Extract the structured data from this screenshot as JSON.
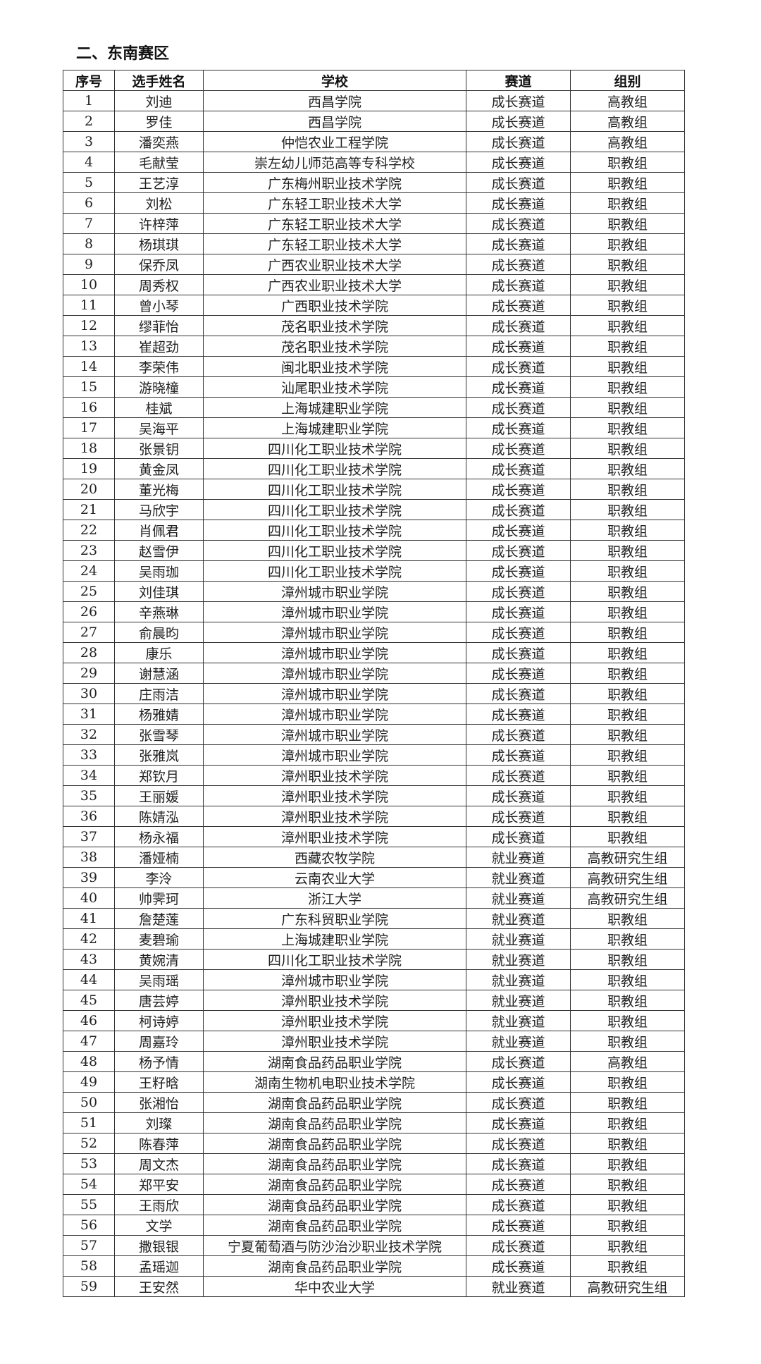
{
  "section_title": "二、东南赛区",
  "table": {
    "headers": [
      "序号",
      "选手姓名",
      "学校",
      "赛道",
      "组别"
    ],
    "rows": [
      [
        "1",
        "刘迪",
        "西昌学院",
        "成长赛道",
        "高教组"
      ],
      [
        "2",
        "罗佳",
        "西昌学院",
        "成长赛道",
        "高教组"
      ],
      [
        "3",
        "潘奕燕",
        "仲恺农业工程学院",
        "成长赛道",
        "高教组"
      ],
      [
        "4",
        "毛献莹",
        "崇左幼儿师范高等专科学校",
        "成长赛道",
        "职教组"
      ],
      [
        "5",
        "王艺淳",
        "广东梅州职业技术学院",
        "成长赛道",
        "职教组"
      ],
      [
        "6",
        "刘松",
        "广东轻工职业技术大学",
        "成长赛道",
        "职教组"
      ],
      [
        "7",
        "许梓萍",
        "广东轻工职业技术大学",
        "成长赛道",
        "职教组"
      ],
      [
        "8",
        "杨琪琪",
        "广东轻工职业技术大学",
        "成长赛道",
        "职教组"
      ],
      [
        "9",
        "保乔凤",
        "广西农业职业技术大学",
        "成长赛道",
        "职教组"
      ],
      [
        "10",
        "周秀权",
        "广西农业职业技术大学",
        "成长赛道",
        "职教组"
      ],
      [
        "11",
        "曾小琴",
        "广西职业技术学院",
        "成长赛道",
        "职教组"
      ],
      [
        "12",
        "缪菲怡",
        "茂名职业技术学院",
        "成长赛道",
        "职教组"
      ],
      [
        "13",
        "崔超劲",
        "茂名职业技术学院",
        "成长赛道",
        "职教组"
      ],
      [
        "14",
        "李荣伟",
        "闽北职业技术学院",
        "成长赛道",
        "职教组"
      ],
      [
        "15",
        "游晓橦",
        "汕尾职业技术学院",
        "成长赛道",
        "职教组"
      ],
      [
        "16",
        "桂斌",
        "上海城建职业学院",
        "成长赛道",
        "职教组"
      ],
      [
        "17",
        "吴海平",
        "上海城建职业学院",
        "成长赛道",
        "职教组"
      ],
      [
        "18",
        "张景钥",
        "四川化工职业技术学院",
        "成长赛道",
        "职教组"
      ],
      [
        "19",
        "黄金凤",
        "四川化工职业技术学院",
        "成长赛道",
        "职教组"
      ],
      [
        "20",
        "董光梅",
        "四川化工职业技术学院",
        "成长赛道",
        "职教组"
      ],
      [
        "21",
        "马欣宇",
        "四川化工职业技术学院",
        "成长赛道",
        "职教组"
      ],
      [
        "22",
        "肖佩君",
        "四川化工职业技术学院",
        "成长赛道",
        "职教组"
      ],
      [
        "23",
        "赵雪伊",
        "四川化工职业技术学院",
        "成长赛道",
        "职教组"
      ],
      [
        "24",
        "吴雨珈",
        "四川化工职业技术学院",
        "成长赛道",
        "职教组"
      ],
      [
        "25",
        "刘佳琪",
        "漳州城市职业学院",
        "成长赛道",
        "职教组"
      ],
      [
        "26",
        "辛燕琳",
        "漳州城市职业学院",
        "成长赛道",
        "职教组"
      ],
      [
        "27",
        "俞晨昀",
        "漳州城市职业学院",
        "成长赛道",
        "职教组"
      ],
      [
        "28",
        "康乐",
        "漳州城市职业学院",
        "成长赛道",
        "职教组"
      ],
      [
        "29",
        "谢慧涵",
        "漳州城市职业学院",
        "成长赛道",
        "职教组"
      ],
      [
        "30",
        "庄雨洁",
        "漳州城市职业学院",
        "成长赛道",
        "职教组"
      ],
      [
        "31",
        "杨雅婧",
        "漳州城市职业学院",
        "成长赛道",
        "职教组"
      ],
      [
        "32",
        "张雪琴",
        "漳州城市职业学院",
        "成长赛道",
        "职教组"
      ],
      [
        "33",
        "张雅岚",
        "漳州城市职业学院",
        "成长赛道",
        "职教组"
      ],
      [
        "34",
        "郑钦月",
        "漳州职业技术学院",
        "成长赛道",
        "职教组"
      ],
      [
        "35",
        "王丽媛",
        "漳州职业技术学院",
        "成长赛道",
        "职教组"
      ],
      [
        "36",
        "陈婧泓",
        "漳州职业技术学院",
        "成长赛道",
        "职教组"
      ],
      [
        "37",
        "杨永福",
        "漳州职业技术学院",
        "成长赛道",
        "职教组"
      ],
      [
        "38",
        "潘娅楠",
        "西藏农牧学院",
        "就业赛道",
        "高教研究生组"
      ],
      [
        "39",
        "李泠",
        "云南农业大学",
        "就业赛道",
        "高教研究生组"
      ],
      [
        "40",
        "帅霁珂",
        "浙江大学",
        "就业赛道",
        "高教研究生组"
      ],
      [
        "41",
        "詹楚莲",
        "广东科贸职业学院",
        "就业赛道",
        "职教组"
      ],
      [
        "42",
        "麦碧瑜",
        "上海城建职业学院",
        "就业赛道",
        "职教组"
      ],
      [
        "43",
        "黄婉清",
        "四川化工职业技术学院",
        "就业赛道",
        "职教组"
      ],
      [
        "44",
        "吴雨瑶",
        "漳州城市职业学院",
        "就业赛道",
        "职教组"
      ],
      [
        "45",
        "唐芸婷",
        "漳州职业技术学院",
        "就业赛道",
        "职教组"
      ],
      [
        "46",
        "柯诗婷",
        "漳州职业技术学院",
        "就业赛道",
        "职教组"
      ],
      [
        "47",
        "周嘉玲",
        "漳州职业技术学院",
        "就业赛道",
        "职教组"
      ],
      [
        "48",
        "杨予情",
        "湖南食品药品职业学院",
        "成长赛道",
        "高教组"
      ],
      [
        "49",
        "王籽晗",
        "湖南生物机电职业技术学院",
        "成长赛道",
        "职教组"
      ],
      [
        "50",
        "张湘怡",
        "湖南食品药品职业学院",
        "成长赛道",
        "职教组"
      ],
      [
        "51",
        "刘璨",
        "湖南食品药品职业学院",
        "成长赛道",
        "职教组"
      ],
      [
        "52",
        "陈春萍",
        "湖南食品药品职业学院",
        "成长赛道",
        "职教组"
      ],
      [
        "53",
        "周文杰",
        "湖南食品药品职业学院",
        "成长赛道",
        "职教组"
      ],
      [
        "54",
        "郑平安",
        "湖南食品药品职业学院",
        "成长赛道",
        "职教组"
      ],
      [
        "55",
        "王雨欣",
        "湖南食品药品职业学院",
        "成长赛道",
        "职教组"
      ],
      [
        "56",
        "文学",
        "湖南食品药品职业学院",
        "成长赛道",
        "职教组"
      ],
      [
        "57",
        "撒银银",
        "宁夏葡萄酒与防沙治沙职业技术学院",
        "成长赛道",
        "职教组"
      ],
      [
        "58",
        "孟瑶迦",
        "湖南食品药品职业学院",
        "成长赛道",
        "职教组"
      ],
      [
        "59",
        "王安然",
        "华中农业大学",
        "就业赛道",
        "高教研究生组"
      ]
    ]
  }
}
